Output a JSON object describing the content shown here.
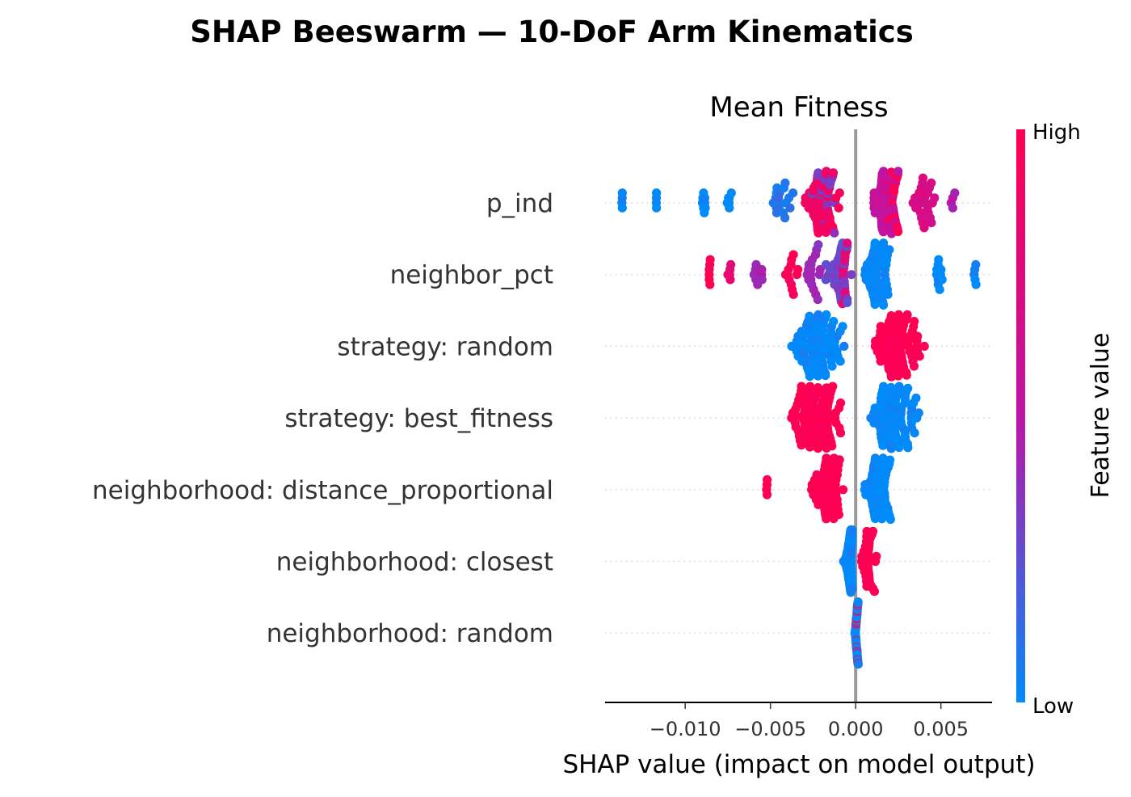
{
  "figure": {
    "suptitle": "SHAP Beeswarm — 10-DoF Arm Kinematics"
  },
  "chart_data": {
    "type": "scatter",
    "subtype": "shap-beeswarm",
    "title": "Mean Fitness",
    "xlabel": "SHAP value (impact on model output)",
    "xlim": [
      -0.0147,
      0.008
    ],
    "xticks": [
      {
        "value": -0.01,
        "label": "−0.010"
      },
      {
        "value": -0.005,
        "label": "−0.005"
      },
      {
        "value": 0.0,
        "label": "0.000"
      },
      {
        "value": 0.005,
        "label": "0.005"
      }
    ],
    "zero_line": true,
    "colorbar": {
      "label": "Feature value",
      "high_label": "High",
      "low_label": "Low",
      "high_color": "#ff0052",
      "mid_color": "#bd14a6",
      "low_color": "#008bfb"
    },
    "features": [
      {
        "name": "p_ind",
        "clusters": [
          {
            "min": -0.0137,
            "max": -0.0137,
            "count": 4,
            "value": 0.0
          },
          {
            "min": -0.0117,
            "max": -0.0117,
            "count": 4,
            "value": 0.0
          },
          {
            "min": -0.0091,
            "max": -0.0087,
            "count": 8,
            "value": 0.0
          },
          {
            "min": -0.0077,
            "max": -0.0071,
            "count": 6,
            "value": 0.0
          },
          {
            "min": -0.0053,
            "max": -0.0034,
            "count": 18,
            "value": 0.08
          },
          {
            "min": -0.0035,
            "max": -0.0005,
            "count": 60,
            "value": 0.9
          },
          {
            "min": -0.003,
            "max": -0.0005,
            "count": 20,
            "value": 0.35
          },
          {
            "min": 0.0007,
            "max": 0.0028,
            "count": 70,
            "value": 0.55
          },
          {
            "min": 0.0012,
            "max": 0.0032,
            "count": 20,
            "value": 0.95
          },
          {
            "min": 0.0028,
            "max": 0.0052,
            "count": 25,
            "value": 0.7
          },
          {
            "min": 0.0055,
            "max": 0.006,
            "count": 4,
            "value": 0.45
          }
        ]
      },
      {
        "name": "neighbor_pct",
        "clusters": [
          {
            "min": -0.0087,
            "max": -0.0084,
            "count": 6,
            "value": 1.0
          },
          {
            "min": -0.0076,
            "max": -0.0072,
            "count": 5,
            "value": 0.8
          },
          {
            "min": -0.0064,
            "max": -0.005,
            "count": 8,
            "value": 0.45
          },
          {
            "min": -0.0045,
            "max": -0.003,
            "count": 12,
            "value": 0.95
          },
          {
            "min": -0.0035,
            "max": -0.0015,
            "count": 18,
            "value": 0.4
          },
          {
            "min": -0.002,
            "max": 0.0,
            "count": 40,
            "value": 0.3
          },
          {
            "min": -0.001,
            "max": -0.0001,
            "count": 12,
            "value": 0.75
          },
          {
            "min": 0.0001,
            "max": 0.0024,
            "count": 110,
            "value": 0.0
          },
          {
            "min": 0.0046,
            "max": 0.0052,
            "count": 10,
            "value": 0.0
          },
          {
            "min": 0.0069,
            "max": 0.0071,
            "count": 5,
            "value": 0.0
          }
        ]
      },
      {
        "name": "strategy: random",
        "clusters": [
          {
            "min": -0.0047,
            "max": -0.0001,
            "count": 110,
            "value": 0.0
          },
          {
            "min": 0.0002,
            "max": 0.0046,
            "count": 115,
            "value": 1.0
          }
        ]
      },
      {
        "name": "strategy: best_fitness",
        "clusters": [
          {
            "min": -0.0045,
            "max": -0.0002,
            "count": 115,
            "value": 1.0
          },
          {
            "min": 0.0002,
            "max": 0.0044,
            "count": 110,
            "value": 0.0
          }
        ]
      },
      {
        "name": "neighborhood: distance_proportional",
        "clusters": [
          {
            "min": -0.0052,
            "max": -0.0052,
            "count": 4,
            "value": 1.0
          },
          {
            "min": -0.0031,
            "max": -0.0002,
            "count": 70,
            "value": 1.0
          },
          {
            "min": 0.0001,
            "max": 0.0025,
            "count": 70,
            "value": 0.0
          }
        ]
      },
      {
        "name": "neighborhood: closest",
        "clusters": [
          {
            "min": -0.0008,
            "max": 0.0,
            "count": 130,
            "value": 0.0
          },
          {
            "min": 0.0002,
            "max": 0.0014,
            "count": 35,
            "value": 1.0
          }
        ]
      },
      {
        "name": "neighborhood: random",
        "clusters": [
          {
            "min": -0.0001,
            "max": 0.0002,
            "count": 60,
            "value": 0.0
          },
          {
            "min": -0.0001,
            "max": 0.0002,
            "count": 15,
            "value": 1.0
          }
        ]
      }
    ]
  }
}
